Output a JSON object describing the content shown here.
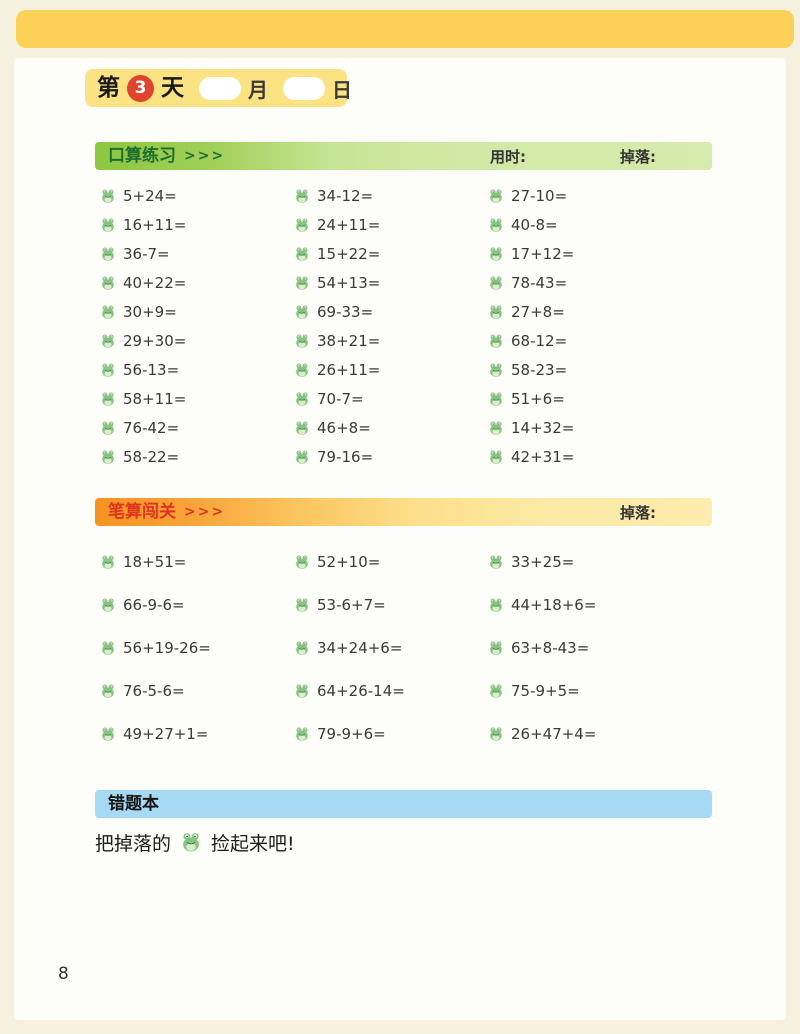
{
  "header": {
    "day_prefix": "第",
    "day_number": "3",
    "day_suffix": "天",
    "month_label": "月",
    "date_label": "日"
  },
  "sections": {
    "oral": {
      "title": "口算练习",
      "arrows": ">>>",
      "time_label": "用时:",
      "drop_label": "掉落:",
      "columns": [
        [
          "5+24=",
          "16+11=",
          "36-7=",
          "40+22=",
          "30+9=",
          "29+30=",
          "56-13=",
          "58+11=",
          "76-42=",
          "58-22="
        ],
        [
          "34-12=",
          "24+11=",
          "15+22=",
          "54+13=",
          "69-33=",
          "38+21=",
          "26+11=",
          "70-7=",
          "46+8=",
          "79-16="
        ],
        [
          "27-10=",
          "40-8=",
          "17+12=",
          "78-43=",
          "27+8=",
          "68-12=",
          "58-23=",
          "51+6=",
          "14+32=",
          "42+31="
        ]
      ]
    },
    "written": {
      "title": "笔算闯关",
      "arrows": ">>>",
      "drop_label": "掉落:",
      "columns": [
        [
          "18+51=",
          "66-9-6=",
          "56+19-26=",
          "76-5-6=",
          "49+27+1="
        ],
        [
          "52+10=",
          "53-6+7=",
          "34+24+6=",
          "64+26-14=",
          "79-9+6="
        ],
        [
          "33+25=",
          "44+18+6=",
          "63+8-43=",
          "75-9+5=",
          "26+47+4="
        ]
      ]
    },
    "mistakes": {
      "title": "错题本",
      "note_prefix": "把掉落的",
      "note_suffix": "捡起来吧!"
    }
  },
  "footer": {
    "page_number": "8"
  },
  "icons": {
    "problem_marker": "frog-icon"
  },
  "colors": {
    "page_background": "#f6f0de",
    "banner_yellow": "#fbd157",
    "badge_yellow": "#fbe282",
    "badge_circle_red": "#e0442e",
    "oral_bar_green_start": "#8cc63e",
    "oral_bar_green_end": "#d6ebac",
    "oral_title_green": "#1d6e2e",
    "written_bar_orange_start": "#f69220",
    "written_bar_yellow_end": "#fdecae",
    "written_title_red": "#df3420",
    "mistakes_bar_blue": "#a6d9f3",
    "problem_text": "#3a3a3a",
    "frog_green": "#85c57f"
  }
}
